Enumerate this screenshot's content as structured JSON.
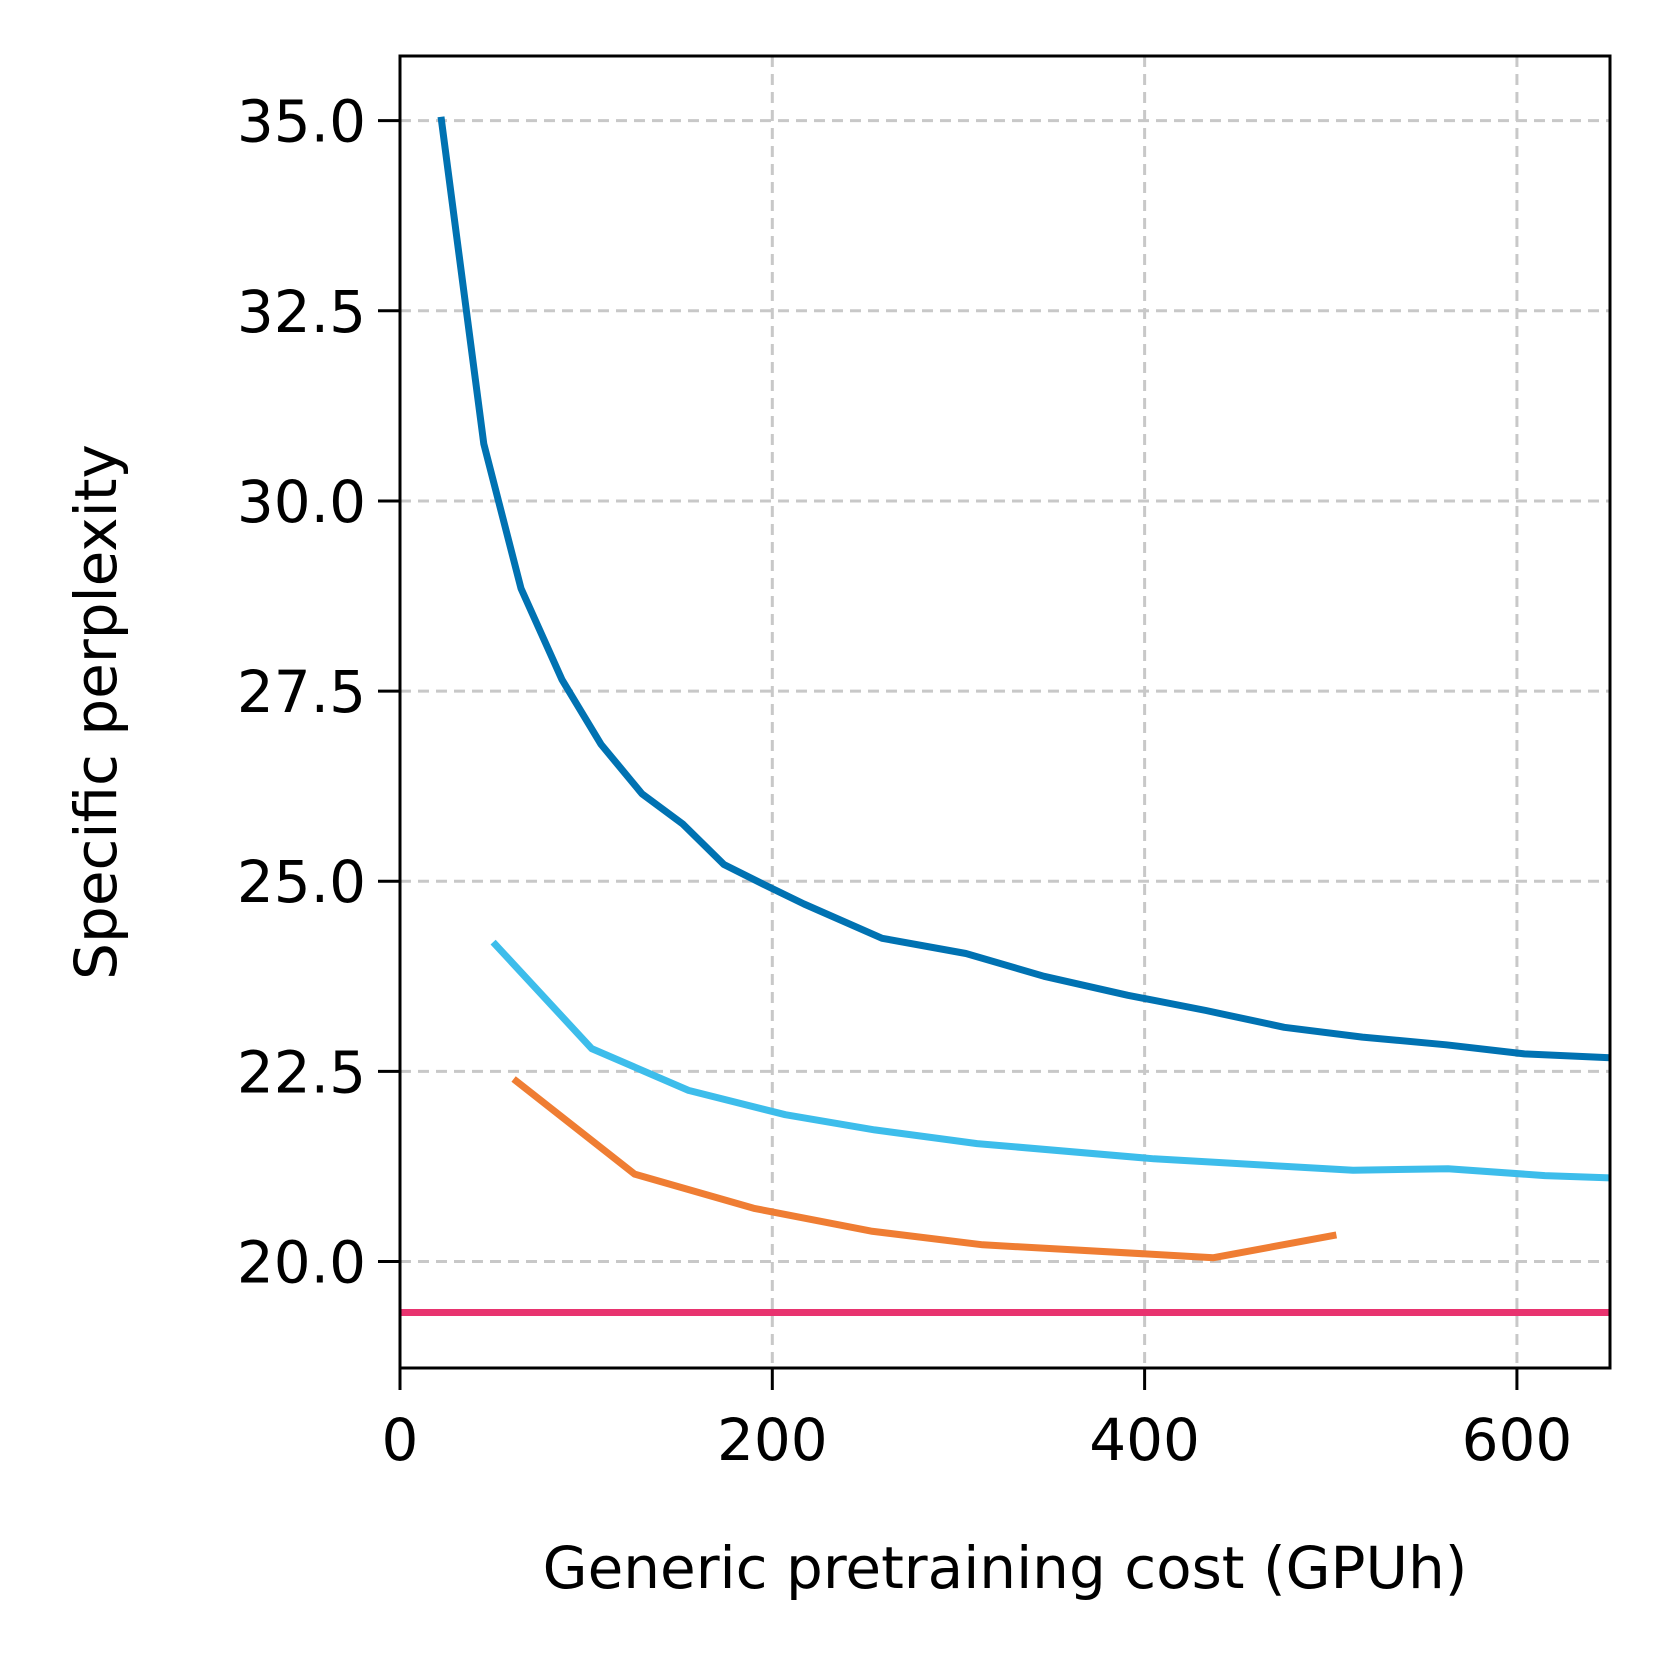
{
  "chart_data": {
    "type": "line",
    "title": "",
    "xlabel": "Generic pretraining cost (GPUh)",
    "ylabel": "Specific perplexity",
    "xlim": [
      0,
      650
    ],
    "ylim": [
      18.6,
      35.85
    ],
    "xticks": [
      0,
      200,
      400,
      600
    ],
    "xtick_labels": [
      "0",
      "200",
      "400",
      "600"
    ],
    "yticks": [
      20.0,
      22.5,
      25.0,
      27.5,
      30.0,
      32.5,
      35.0
    ],
    "ytick_labels": [
      "20.0",
      "22.5",
      "25.0",
      "27.5",
      "30.0",
      "32.5",
      "35.0"
    ],
    "grid": true,
    "legend": null,
    "series": [
      {
        "name": "series-dark-blue",
        "color": "#0072b2",
        "x": [
          22,
          45,
          65,
          87,
          108,
          130,
          152,
          174,
          196,
          217,
          259,
          304,
          346,
          391,
          433,
          475,
          517,
          562,
          604,
          650
        ],
        "y": [
          35.05,
          30.75,
          28.85,
          27.65,
          26.8,
          26.15,
          25.75,
          25.22,
          24.95,
          24.7,
          24.25,
          24.05,
          23.75,
          23.5,
          23.3,
          23.08,
          22.95,
          22.85,
          22.73,
          22.68
        ]
      },
      {
        "name": "series-light-blue",
        "color": "#3dbdeb",
        "x": [
          50,
          103,
          155,
          207,
          255,
          310,
          405,
          512,
          563,
          615,
          650
        ],
        "y": [
          24.2,
          22.8,
          22.25,
          21.93,
          21.73,
          21.55,
          21.35,
          21.2,
          21.22,
          21.13,
          21.1
        ]
      },
      {
        "name": "series-orange",
        "color": "#ef7d33",
        "x": [
          61,
          126,
          190,
          253,
          313,
          437,
          503
        ],
        "y": [
          22.4,
          21.15,
          20.7,
          20.4,
          20.22,
          20.05,
          20.35
        ]
      },
      {
        "name": "baseline-pink",
        "color": "#e8336f",
        "x": [
          0,
          650
        ],
        "y": [
          19.33,
          19.33
        ]
      }
    ]
  }
}
